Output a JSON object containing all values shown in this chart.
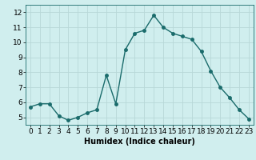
{
  "x": [
    0,
    1,
    2,
    3,
    4,
    5,
    6,
    7,
    8,
    9,
    10,
    11,
    12,
    13,
    14,
    15,
    16,
    17,
    18,
    19,
    20,
    21,
    22,
    23
  ],
  "y": [
    5.7,
    5.9,
    5.9,
    5.1,
    4.8,
    5.0,
    5.3,
    5.5,
    7.8,
    5.9,
    9.5,
    10.6,
    10.8,
    11.8,
    11.0,
    10.6,
    10.4,
    10.2,
    9.4,
    8.1,
    7.0,
    6.3,
    5.5,
    4.9
  ],
  "line_color": "#1a6b6b",
  "marker": "o",
  "marker_size": 2.5,
  "bg_color": "#d0eeee",
  "grid_color": "#b8d8d8",
  "xlabel": "Humidex (Indice chaleur)",
  "ylim": [
    4.5,
    12.5
  ],
  "xlim": [
    -0.5,
    23.5
  ],
  "yticks": [
    5,
    6,
    7,
    8,
    9,
    10,
    11,
    12
  ],
  "xticks": [
    0,
    1,
    2,
    3,
    4,
    5,
    6,
    7,
    8,
    9,
    10,
    11,
    12,
    13,
    14,
    15,
    16,
    17,
    18,
    19,
    20,
    21,
    22,
    23
  ],
  "xlabel_fontsize": 7,
  "tick_fontsize": 6.5
}
